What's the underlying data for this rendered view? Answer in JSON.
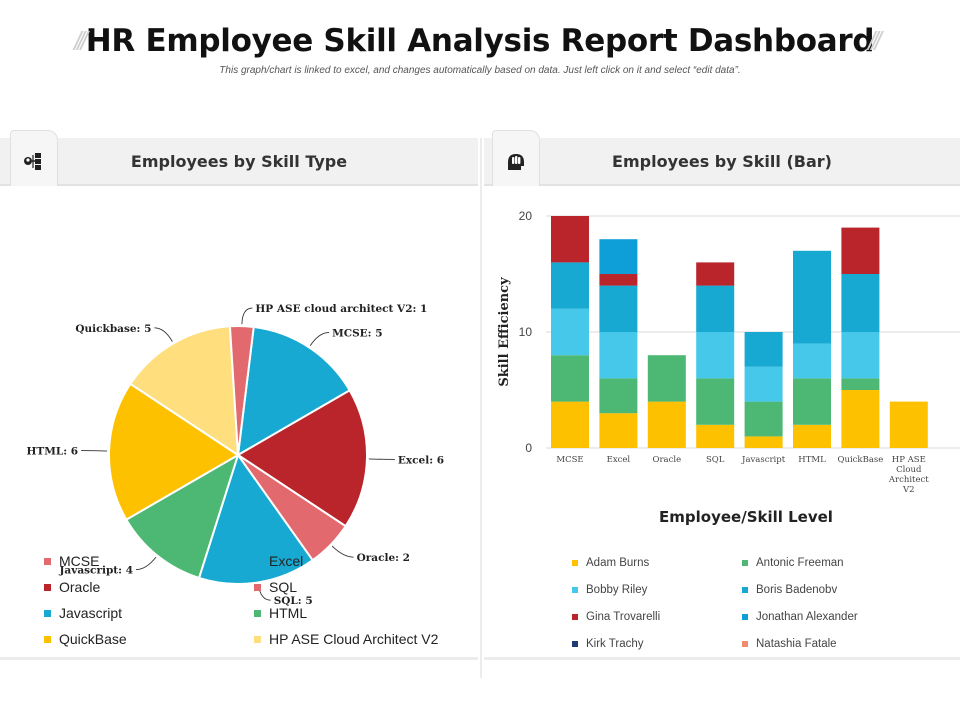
{
  "header": {
    "title": "HR Employee Skill Analysis Report Dashboard",
    "subtitle": "This graph/chart  is linked to excel, and changes automatically based on data. Just left click on it and select “edit data”.",
    "decor": "///"
  },
  "panels": {
    "left": {
      "title": "Employees by Skill Type",
      "icon": "team-structure-icon"
    },
    "right": {
      "title": "Employees by Skill (Bar)",
      "icon": "hand-head-icon"
    }
  },
  "chart_data": [
    {
      "type": "pie",
      "title": "Employees by Skill Type",
      "slices": [
        {
          "name": "MCSE",
          "label": "MCSE: 5",
          "value": 5,
          "color": "#17A9D1"
        },
        {
          "name": "Excel",
          "label": "Excel: 6",
          "value": 6,
          "color": "#B9252B"
        },
        {
          "name": "Oracle",
          "label": "Oracle: 2",
          "value": 2,
          "color": "#E26A6F"
        },
        {
          "name": "SQL",
          "label": "SQL: 5",
          "value": 5,
          "color": "#17A9D1"
        },
        {
          "name": "Javascript",
          "label": "Javascript:  4",
          "value": 4,
          "color": "#4DB874"
        },
        {
          "name": "HTML",
          "label": "HTML: 6",
          "value": 6,
          "color": "#FDC100"
        },
        {
          "name": "Quickbase",
          "label": "Quickbase: 5",
          "value": 5,
          "color": "#FEDE7D"
        },
        {
          "name": "HP ASE cloud architect V2",
          "label": "HP ASE cloud architect V2: 1",
          "value": 1,
          "color": "#E26A6F"
        }
      ],
      "legend": [
        {
          "label": "MCSE",
          "color": "#E26A6F"
        },
        {
          "label": "Excel",
          "color": "#17A9D1"
        },
        {
          "label": "Oracle",
          "color": "#B9252B"
        },
        {
          "label": "SQL",
          "color": "#E26A6F"
        },
        {
          "label": "Javascript",
          "color": "#17A9D1"
        },
        {
          "label": "HTML",
          "color": "#4DB874"
        },
        {
          "label": "QuickBase",
          "color": "#FDC100"
        },
        {
          "label": "HP ASE Cloud Architect V2",
          "color": "#FEDE7D"
        }
      ]
    },
    {
      "type": "bar",
      "stacked": true,
      "title": "Employees by Skill (Bar)",
      "xlabel": "Employee/Skill Level",
      "ylabel": "Skill Efficiency",
      "ylim": [
        0,
        20
      ],
      "yticks": [
        0,
        10,
        20
      ],
      "grid": true,
      "categories": [
        "MCSE",
        "Excel",
        "Oracle",
        "SQL",
        "Javascript",
        "HTML",
        "QuickBase",
        "HP ASE Cloud Architect V2"
      ],
      "series": [
        {
          "name": "Adam Burns",
          "color": "#FDC100",
          "values": [
            4,
            3,
            4,
            2,
            1,
            2,
            5,
            4
          ]
        },
        {
          "name": "Antonic Freeman",
          "color": "#4DB874",
          "values": [
            4,
            3,
            4,
            4,
            3,
            4,
            1,
            0
          ]
        },
        {
          "name": "Bobby Riley",
          "color": "#45C8EA",
          "values": [
            4,
            4,
            0,
            4,
            3,
            3,
            4,
            0
          ]
        },
        {
          "name": "Boris Badenobv",
          "color": "#17A9D1",
          "values": [
            4,
            4,
            0,
            4,
            3,
            8,
            5,
            0
          ]
        },
        {
          "name": "Gina Trovarelli",
          "color": "#B9252B",
          "values": [
            4,
            1,
            0,
            2,
            0,
            0,
            4,
            0
          ]
        },
        {
          "name": "Jonathan Alexander",
          "color": "#0E9FD8",
          "values": [
            0,
            3,
            0,
            0,
            0,
            0,
            0,
            0
          ]
        },
        {
          "name": "Kirk Trachy",
          "color": "#1F3B73",
          "values": [
            0,
            0,
            0,
            0,
            0,
            0,
            0,
            0
          ]
        },
        {
          "name": "Natashia Fatale",
          "color": "#F28C6E",
          "values": [
            0,
            0,
            0,
            0,
            0,
            0,
            0,
            0
          ]
        }
      ],
      "legend_placement": "bottom"
    }
  ]
}
